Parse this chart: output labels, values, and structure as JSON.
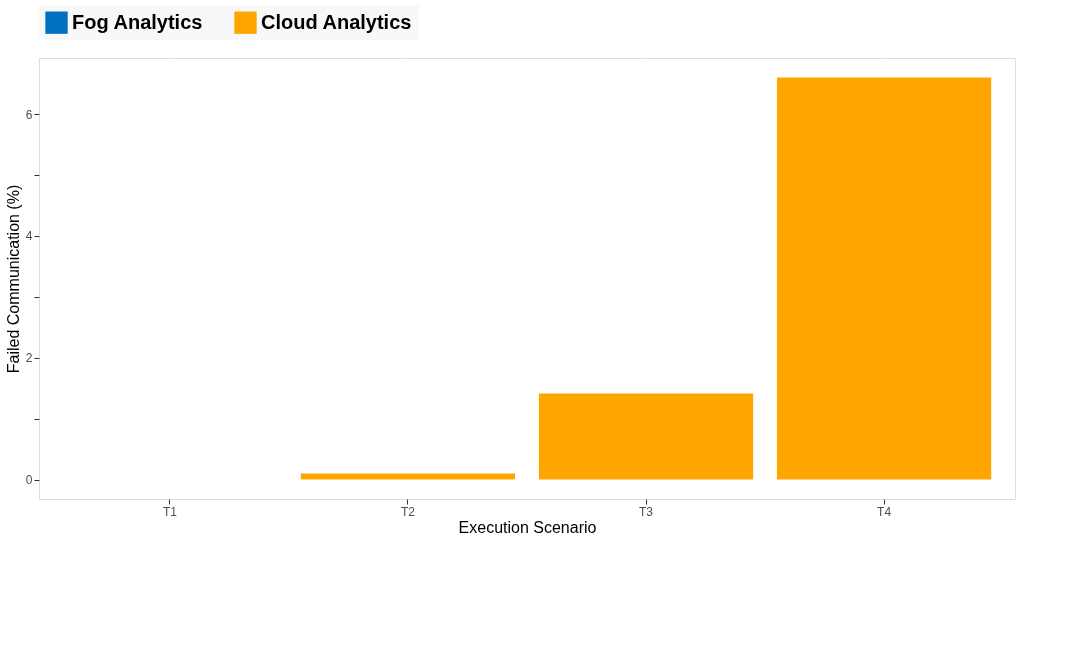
{
  "chart_data": {
    "type": "bar",
    "xlabel": "Execution Scenario",
    "ylabel": "Failed Communication (%)",
    "categories": [
      "T1",
      "T2",
      "T3",
      "T4"
    ],
    "series": [
      {
        "name": "Fog Analytics",
        "color": "#0070c0",
        "values": [
          0,
          0,
          0,
          0
        ]
      },
      {
        "name": "Cloud Analytics",
        "color": "#ffa500",
        "values": [
          0,
          0.1,
          1.41,
          6.6
        ]
      }
    ],
    "ylim": [
      -0.32,
      6.92
    ],
    "yticks": [
      0,
      {
        "value": 1,
        "label": null
      },
      2,
      {
        "value": 3,
        "label": null
      },
      4,
      {
        "value": 5,
        "label": null
      },
      6
    ],
    "grid": true,
    "legend": "top"
  }
}
